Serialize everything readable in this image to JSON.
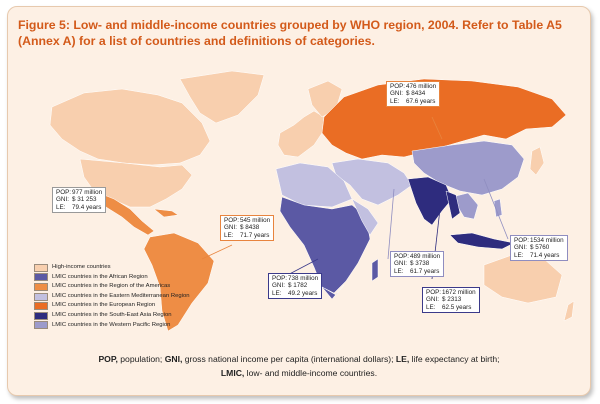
{
  "title": "Figure 5: Low- and middle-income countries grouped by WHO region, 2004. Refer to Table A5 (Annex A) for a list of countries and definitions of categories.",
  "colors": {
    "high_income": "#f8cfae",
    "african": "#5b59a4",
    "americas": "#ee8d45",
    "eastern_mediterranean": "#c2c0e0",
    "european": "#ea6d24",
    "south_east_asia": "#2e2c7e",
    "western_pacific": "#9d9bcb",
    "ocean": "#fdf0e4"
  },
  "legend": [
    {
      "label": "High-income countries",
      "color_key": "high_income"
    },
    {
      "label": "LMIC countries in the African Region",
      "color_key": "african"
    },
    {
      "label": "LMIC countries in the Region of the Americas",
      "color_key": "americas"
    },
    {
      "label": "LMIC countries in the Eastern Mediterranean Region",
      "color_key": "eastern_mediterranean"
    },
    {
      "label": "LMIC countries in the European Region",
      "color_key": "european"
    },
    {
      "label": "LMIC countries in the South-East Asia Region",
      "color_key": "south_east_asia"
    },
    {
      "label": "LMIC countries in the Western Pacific Region",
      "color_key": "western_pacific"
    }
  ],
  "callouts": {
    "high_income": {
      "pop_key": "POP:",
      "pop": "977 million",
      "gni_key": "GNI:",
      "gni": "$ 31 253",
      "le_key": "LE:",
      "le": "79.4 years"
    },
    "europe": {
      "pop_key": "POP:",
      "pop": "476 million",
      "gni_key": "GNI:",
      "gni": "$ 8434",
      "le_key": "LE:",
      "le": "67.6 years"
    },
    "americas": {
      "pop_key": "POP:",
      "pop": "545 million",
      "gni_key": "GNI:",
      "gni": "$ 8438",
      "le_key": "LE:",
      "le": "71.7 years"
    },
    "african": {
      "pop_key": "POP:",
      "pop": "738 million",
      "gni_key": "GNI:",
      "gni": "$ 1782",
      "le_key": "LE:",
      "le": "49.2 years"
    },
    "east_med": {
      "pop_key": "POP:",
      "pop": "489 million",
      "gni_key": "GNI:",
      "gni": "$ 3738",
      "le_key": "LE:",
      "le": "61.7 years"
    },
    "western_pacific": {
      "pop_key": "POP:",
      "pop": "1534 million",
      "gni_key": "GNI:",
      "gni": "$ 5760",
      "le_key": "LE:",
      "le": "71.4 years"
    },
    "south_east_asia": {
      "pop_key": "POP:",
      "pop": "1672 million",
      "gni_key": "GNI:",
      "gni": "$ 2313",
      "le_key": "LE:",
      "le": "62.5 years"
    }
  },
  "footnote": {
    "pop_abbr": "POP,",
    "pop_def": " population;",
    "gni_abbr": " GNI,",
    "gni_def": " gross national income per capita (international dollars);",
    "le_abbr": " LE,",
    "le_def": " life expectancy at birth;",
    "lmic_abbr": "LMIC,",
    "lmic_def": " low- and middle-income countries."
  }
}
